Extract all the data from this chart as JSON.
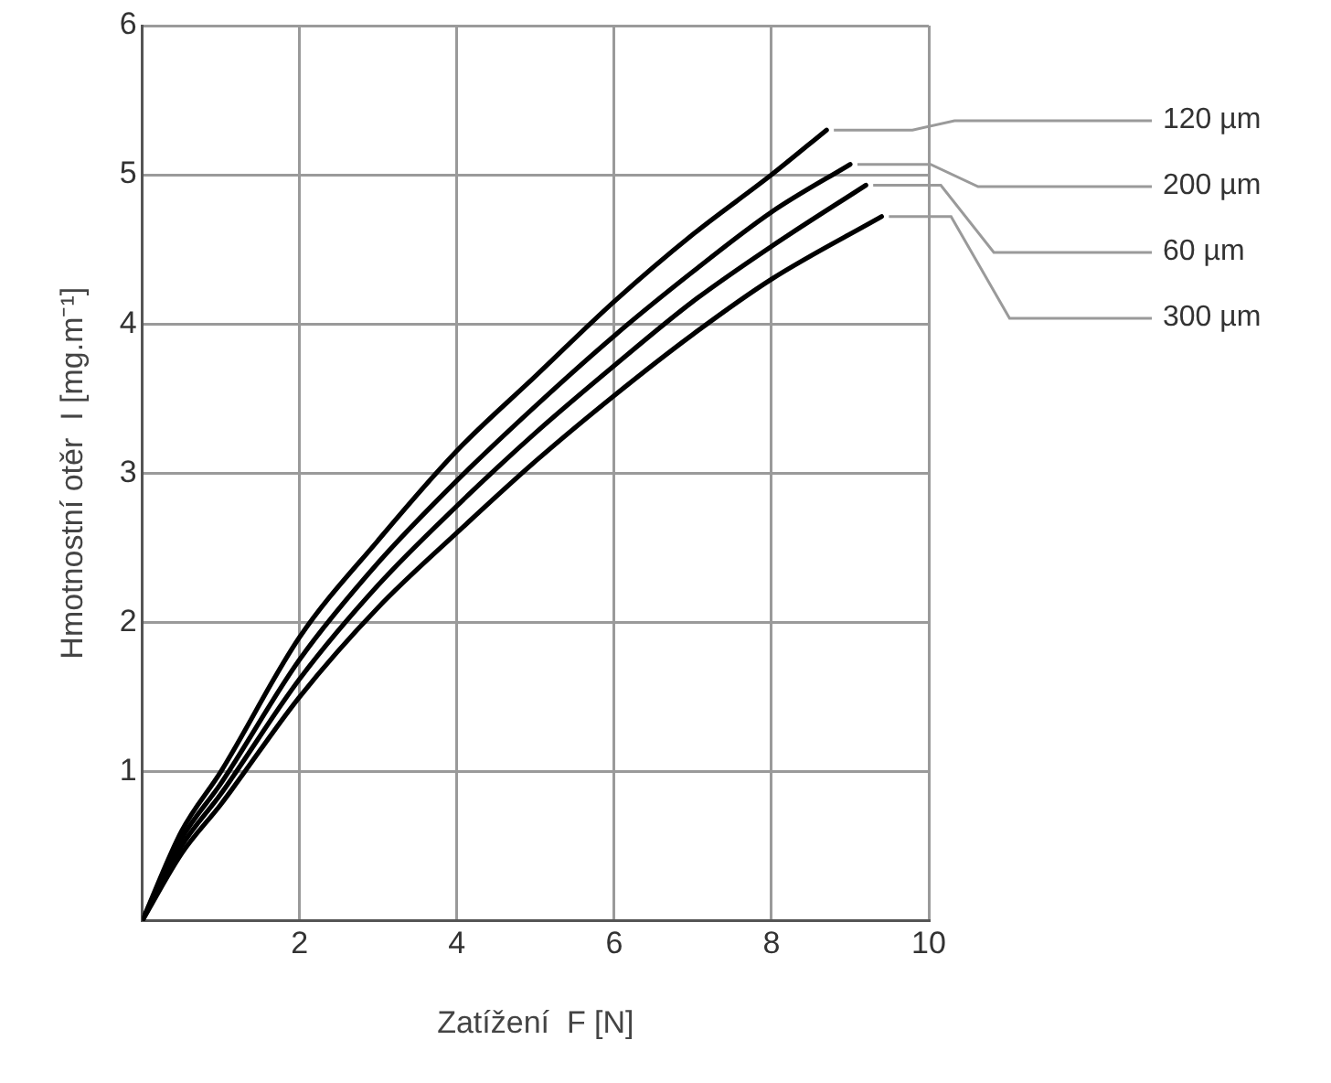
{
  "chart_data": {
    "type": "line",
    "xlabel": "Zatížení  F [N]",
    "ylabel": "Hmotnostní otěr  I [mg.m⁻¹]",
    "xlim": [
      0,
      10
    ],
    "ylim": [
      0,
      6
    ],
    "xticks": [
      {
        "value": 0,
        "label": null
      },
      2,
      4,
      6,
      8,
      10
    ],
    "yticks": [
      {
        "value": 0,
        "label": null
      },
      1,
      2,
      3,
      4,
      5,
      6
    ],
    "grid": true,
    "legend": false,
    "marker": "none",
    "line_style": "solid",
    "series": [
      {
        "name": "120 µm",
        "color": "#000000",
        "x": [
          0,
          0.5,
          1,
          2,
          3,
          4,
          5,
          6,
          7,
          8,
          8.7
        ],
        "values": [
          0,
          0.6,
          1.0,
          1.9,
          2.55,
          3.15,
          3.65,
          4.15,
          4.6,
          5.0,
          5.3
        ]
      },
      {
        "name": "200 µm",
        "color": "#000000",
        "x": [
          0,
          0.5,
          1,
          2,
          3,
          4,
          5,
          6,
          7,
          8,
          9
        ],
        "values": [
          0,
          0.55,
          0.92,
          1.75,
          2.4,
          2.95,
          3.45,
          3.92,
          4.35,
          4.75,
          5.07
        ]
      },
      {
        "name": "60 µm",
        "color": "#000000",
        "x": [
          0,
          0.5,
          1,
          2,
          3,
          4,
          5,
          6,
          7,
          8,
          9.2
        ],
        "values": [
          0,
          0.5,
          0.85,
          1.62,
          2.25,
          2.78,
          3.27,
          3.72,
          4.15,
          4.52,
          4.93
        ]
      },
      {
        "name": "300 µm",
        "color": "#000000",
        "x": [
          0,
          0.5,
          1,
          2,
          3,
          4,
          5,
          6,
          7,
          8,
          9.4
        ],
        "values": [
          0,
          0.45,
          0.78,
          1.5,
          2.1,
          2.6,
          3.08,
          3.52,
          3.93,
          4.3,
          4.72
        ]
      }
    ]
  }
}
